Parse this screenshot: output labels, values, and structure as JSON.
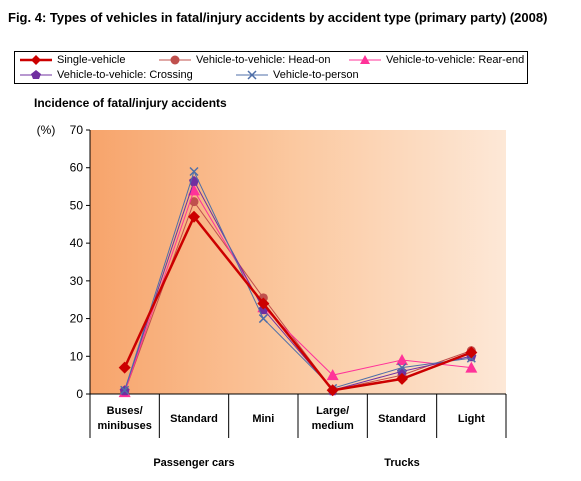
{
  "title": "Fig. 4: Types of vehicles in fatal/injury accidents by accident type (primary party) (2008)",
  "chart_data": {
    "type": "line",
    "ylabel": "Incidence of fatal/injury accidents",
    "yunit": "(%)",
    "ylim": [
      0,
      70
    ],
    "yticks": [
      0,
      10,
      20,
      30,
      40,
      50,
      60,
      70
    ],
    "categories": [
      "Buses/\nminibuses",
      "Standard",
      "Mini",
      "Large/\nmedium",
      "Standard",
      "Light"
    ],
    "groups": [
      {
        "label": "Passenger cars",
        "span": [
          0,
          2
        ]
      },
      {
        "label": "Trucks",
        "span": [
          3,
          5
        ]
      }
    ],
    "legend_position": "top",
    "series": [
      {
        "name": "Single-vehicle",
        "values": [
          7,
          47,
          24,
          1,
          4,
          11
        ],
        "color": "#cc0000",
        "marker": "diamond"
      },
      {
        "name": "Vehicle-to-vehicle: Head-on",
        "values": [
          0.5,
          51,
          25.5,
          1,
          5,
          11.5
        ],
        "color": "#c0504d",
        "marker": "circle"
      },
      {
        "name": "Vehicle-to-vehicle: Rear-end",
        "values": [
          0.5,
          54,
          23,
          5,
          9,
          7
        ],
        "color": "#ff3399",
        "marker": "triangle"
      },
      {
        "name": "Vehicle-to-vehicle: Crossing",
        "values": [
          1,
          56.5,
          22.5,
          1,
          6,
          10
        ],
        "color": "#7030a0",
        "marker": "pentagon"
      },
      {
        "name": "Vehicle-to-person",
        "values": [
          1,
          59,
          20,
          1.5,
          7,
          9.5
        ],
        "color": "#4f6fa8",
        "marker": "x"
      }
    ]
  }
}
